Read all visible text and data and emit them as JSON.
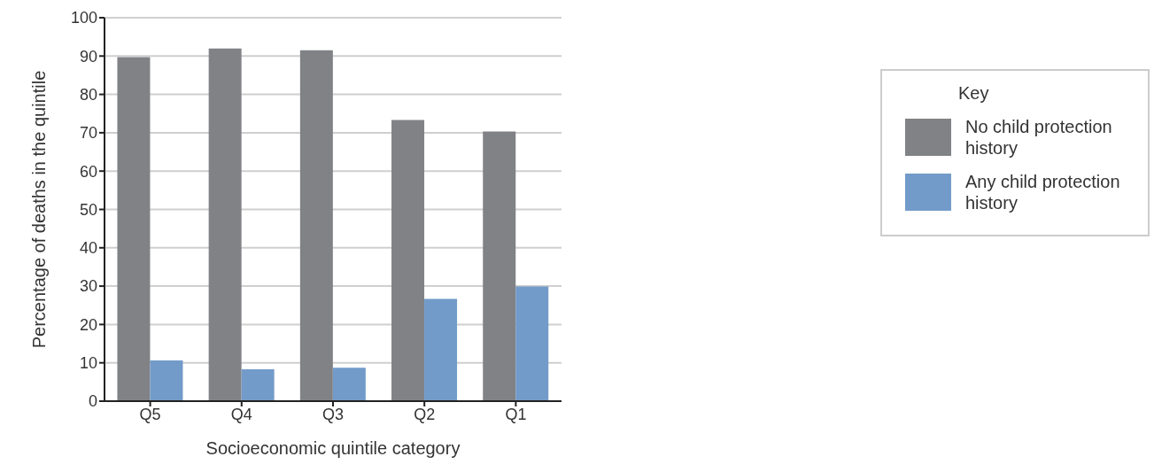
{
  "chart_data": {
    "type": "bar",
    "xlabel": "Socioeconomic quintile category",
    "ylabel": "Percentage of deaths in the quintile",
    "legend_title": "Key",
    "categories": [
      "Q5",
      "Q4",
      "Q3",
      "Q2",
      "Q1"
    ],
    "series": [
      {
        "name": "No child protection history",
        "color": "#818286",
        "values": [
          89.7,
          92,
          91.5,
          73.3,
          70.3
        ]
      },
      {
        "name": "Any child protection history",
        "color": "#729bc9",
        "values": [
          10.6,
          8.3,
          8.7,
          26.7,
          29.9
        ]
      }
    ],
    "ylim": [
      0,
      100
    ],
    "yticks": [
      0,
      10,
      20,
      30,
      40,
      50,
      60,
      70,
      80,
      90,
      100
    ],
    "grid": "y",
    "legend": "right"
  }
}
